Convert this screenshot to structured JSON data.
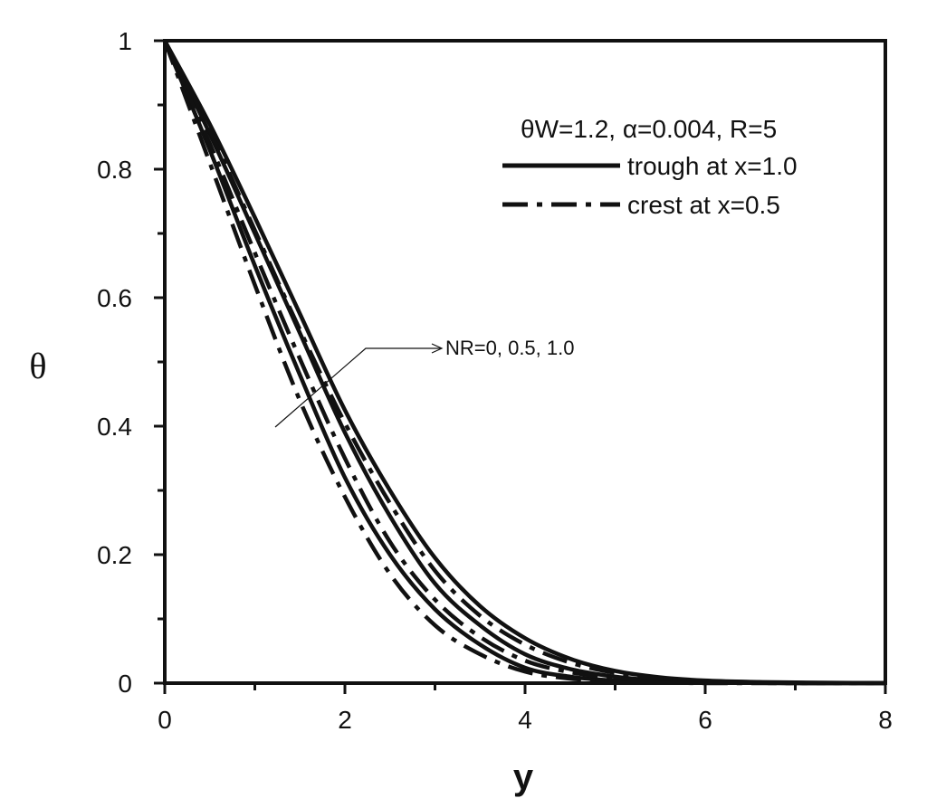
{
  "chart_data": {
    "type": "line",
    "xlabel": "y",
    "ylabel": "θ",
    "xlim": [
      0,
      8
    ],
    "ylim": [
      0,
      1
    ],
    "x_ticks": [
      0,
      2,
      4,
      6,
      8
    ],
    "y_ticks": [
      0,
      0.2,
      0.4,
      0.6,
      0.8,
      1
    ],
    "x_tick_labels": [
      "0",
      "2",
      "4",
      "6",
      "8"
    ],
    "y_tick_labels": [
      "0",
      "0.2",
      "0.4",
      "0.6",
      "0.8",
      "1"
    ],
    "grid": false,
    "legend_position": "top-right",
    "legend": {
      "header": "θW=1.2, α=0.004, R=5",
      "entries": [
        "trough at x=1.0",
        "crest at x=0.5"
      ]
    },
    "annotation": "NR=0, 0.5, 1.0",
    "series": [
      {
        "name": "trough at x=1.0",
        "style": "solid",
        "curves": [
          {
            "x": [
              0,
              0.5,
              1,
              1.5,
              2,
              2.5,
              3,
              3.5,
              4,
              4.5,
              5,
              5.5,
              6,
              6.5,
              7,
              8
            ],
            "y": [
              1,
              0.83,
              0.65,
              0.48,
              0.32,
              0.2,
              0.115,
              0.06,
              0.024,
              0.01,
              0.004,
              0.002,
              0.001,
              0.0005,
              0,
              0
            ]
          },
          {
            "x": [
              0,
              0.5,
              1,
              1.5,
              2,
              2.5,
              3,
              3.5,
              4,
              4.5,
              5,
              5.5,
              6,
              6.5,
              7,
              8
            ],
            "y": [
              1,
              0.855,
              0.7,
              0.545,
              0.39,
              0.26,
              0.155,
              0.09,
              0.045,
              0.022,
              0.01,
              0.004,
              0.002,
              0.001,
              0,
              0
            ]
          },
          {
            "x": [
              0,
              0.5,
              1,
              1.5,
              2,
              2.5,
              3,
              3.5,
              4,
              4.5,
              5,
              5.5,
              6,
              6.5,
              7,
              8
            ],
            "y": [
              1,
              0.87,
              0.725,
              0.575,
              0.425,
              0.3,
              0.195,
              0.12,
              0.07,
              0.038,
              0.019,
              0.009,
              0.004,
              0.002,
              0.001,
              0
            ]
          }
        ]
      },
      {
        "name": "crest at x=0.5",
        "style": "dash-dot",
        "curves": [
          {
            "x": [
              0,
              0.5,
              1,
              1.5,
              2,
              2.5,
              3,
              3.5,
              4,
              4.5,
              5,
              5.5,
              6,
              6.5,
              7,
              8
            ],
            "y": [
              1,
              0.81,
              0.62,
              0.44,
              0.29,
              0.17,
              0.09,
              0.045,
              0.018,
              0.007,
              0.003,
              0.001,
              0,
              0,
              0,
              0
            ]
          },
          {
            "x": [
              0,
              0.5,
              1,
              1.5,
              2,
              2.5,
              3,
              3.5,
              4,
              4.5,
              5,
              5.5,
              6,
              6.5,
              7,
              8
            ],
            "y": [
              1,
              0.84,
              0.67,
              0.505,
              0.35,
              0.22,
              0.13,
              0.072,
              0.035,
              0.017,
              0.008,
              0.003,
              0.001,
              0.0005,
              0,
              0
            ]
          },
          {
            "x": [
              0,
              0.5,
              1,
              1.5,
              2,
              2.5,
              3,
              3.5,
              4,
              4.5,
              5,
              5.5,
              6,
              6.5,
              7,
              8
            ],
            "y": [
              1,
              0.86,
              0.705,
              0.55,
              0.405,
              0.28,
              0.175,
              0.105,
              0.06,
              0.032,
              0.016,
              0.007,
              0.003,
              0.0015,
              0.0005,
              0
            ]
          }
        ]
      }
    ]
  }
}
